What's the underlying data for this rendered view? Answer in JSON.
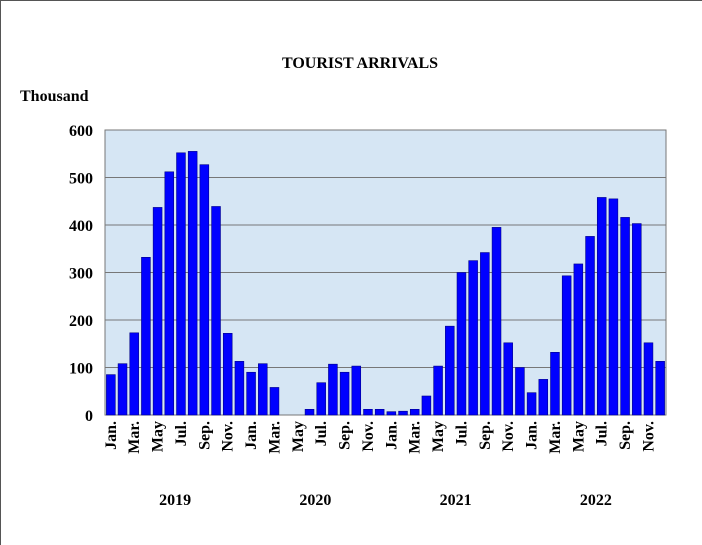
{
  "chart_data": {
    "type": "bar",
    "title": "TOURIST ARRIVALS",
    "y_label": "Thousand",
    "categories": [
      "Jan.",
      null,
      "Mar.",
      null,
      "May",
      null,
      "Jul.",
      null,
      "Sep.",
      null,
      "Nov.",
      null,
      "Jan.",
      null,
      "Mar.",
      null,
      "May",
      null,
      "Jul.",
      null,
      "Sep.",
      null,
      "Nov.",
      null,
      "Jan.",
      null,
      "Mar.",
      null,
      "May",
      null,
      "Jul.",
      null,
      "Sep.",
      null,
      "Nov.",
      null,
      "Jan.",
      null,
      "Mar.",
      null,
      "May",
      null,
      "Jul.",
      null,
      "Sep.",
      null,
      "Nov.",
      null
    ],
    "values": [
      85,
      108,
      173,
      332,
      437,
      512,
      552,
      555,
      527,
      439,
      172,
      113,
      90,
      108,
      58,
      0,
      0,
      12,
      68,
      107,
      90,
      103,
      12,
      12,
      7,
      8,
      12,
      40,
      103,
      187,
      300,
      325,
      342,
      395,
      152,
      100,
      47,
      75,
      132,
      293,
      318,
      376,
      458,
      455,
      416,
      403,
      152,
      113
    ],
    "year_labels": [
      "2019",
      "2020",
      "2021",
      "2022"
    ],
    "color": "#0000ff",
    "ylim": [
      0,
      600
    ],
    "yticks": [
      0,
      100,
      200,
      300,
      400,
      500,
      600
    ],
    "grid": true
  }
}
